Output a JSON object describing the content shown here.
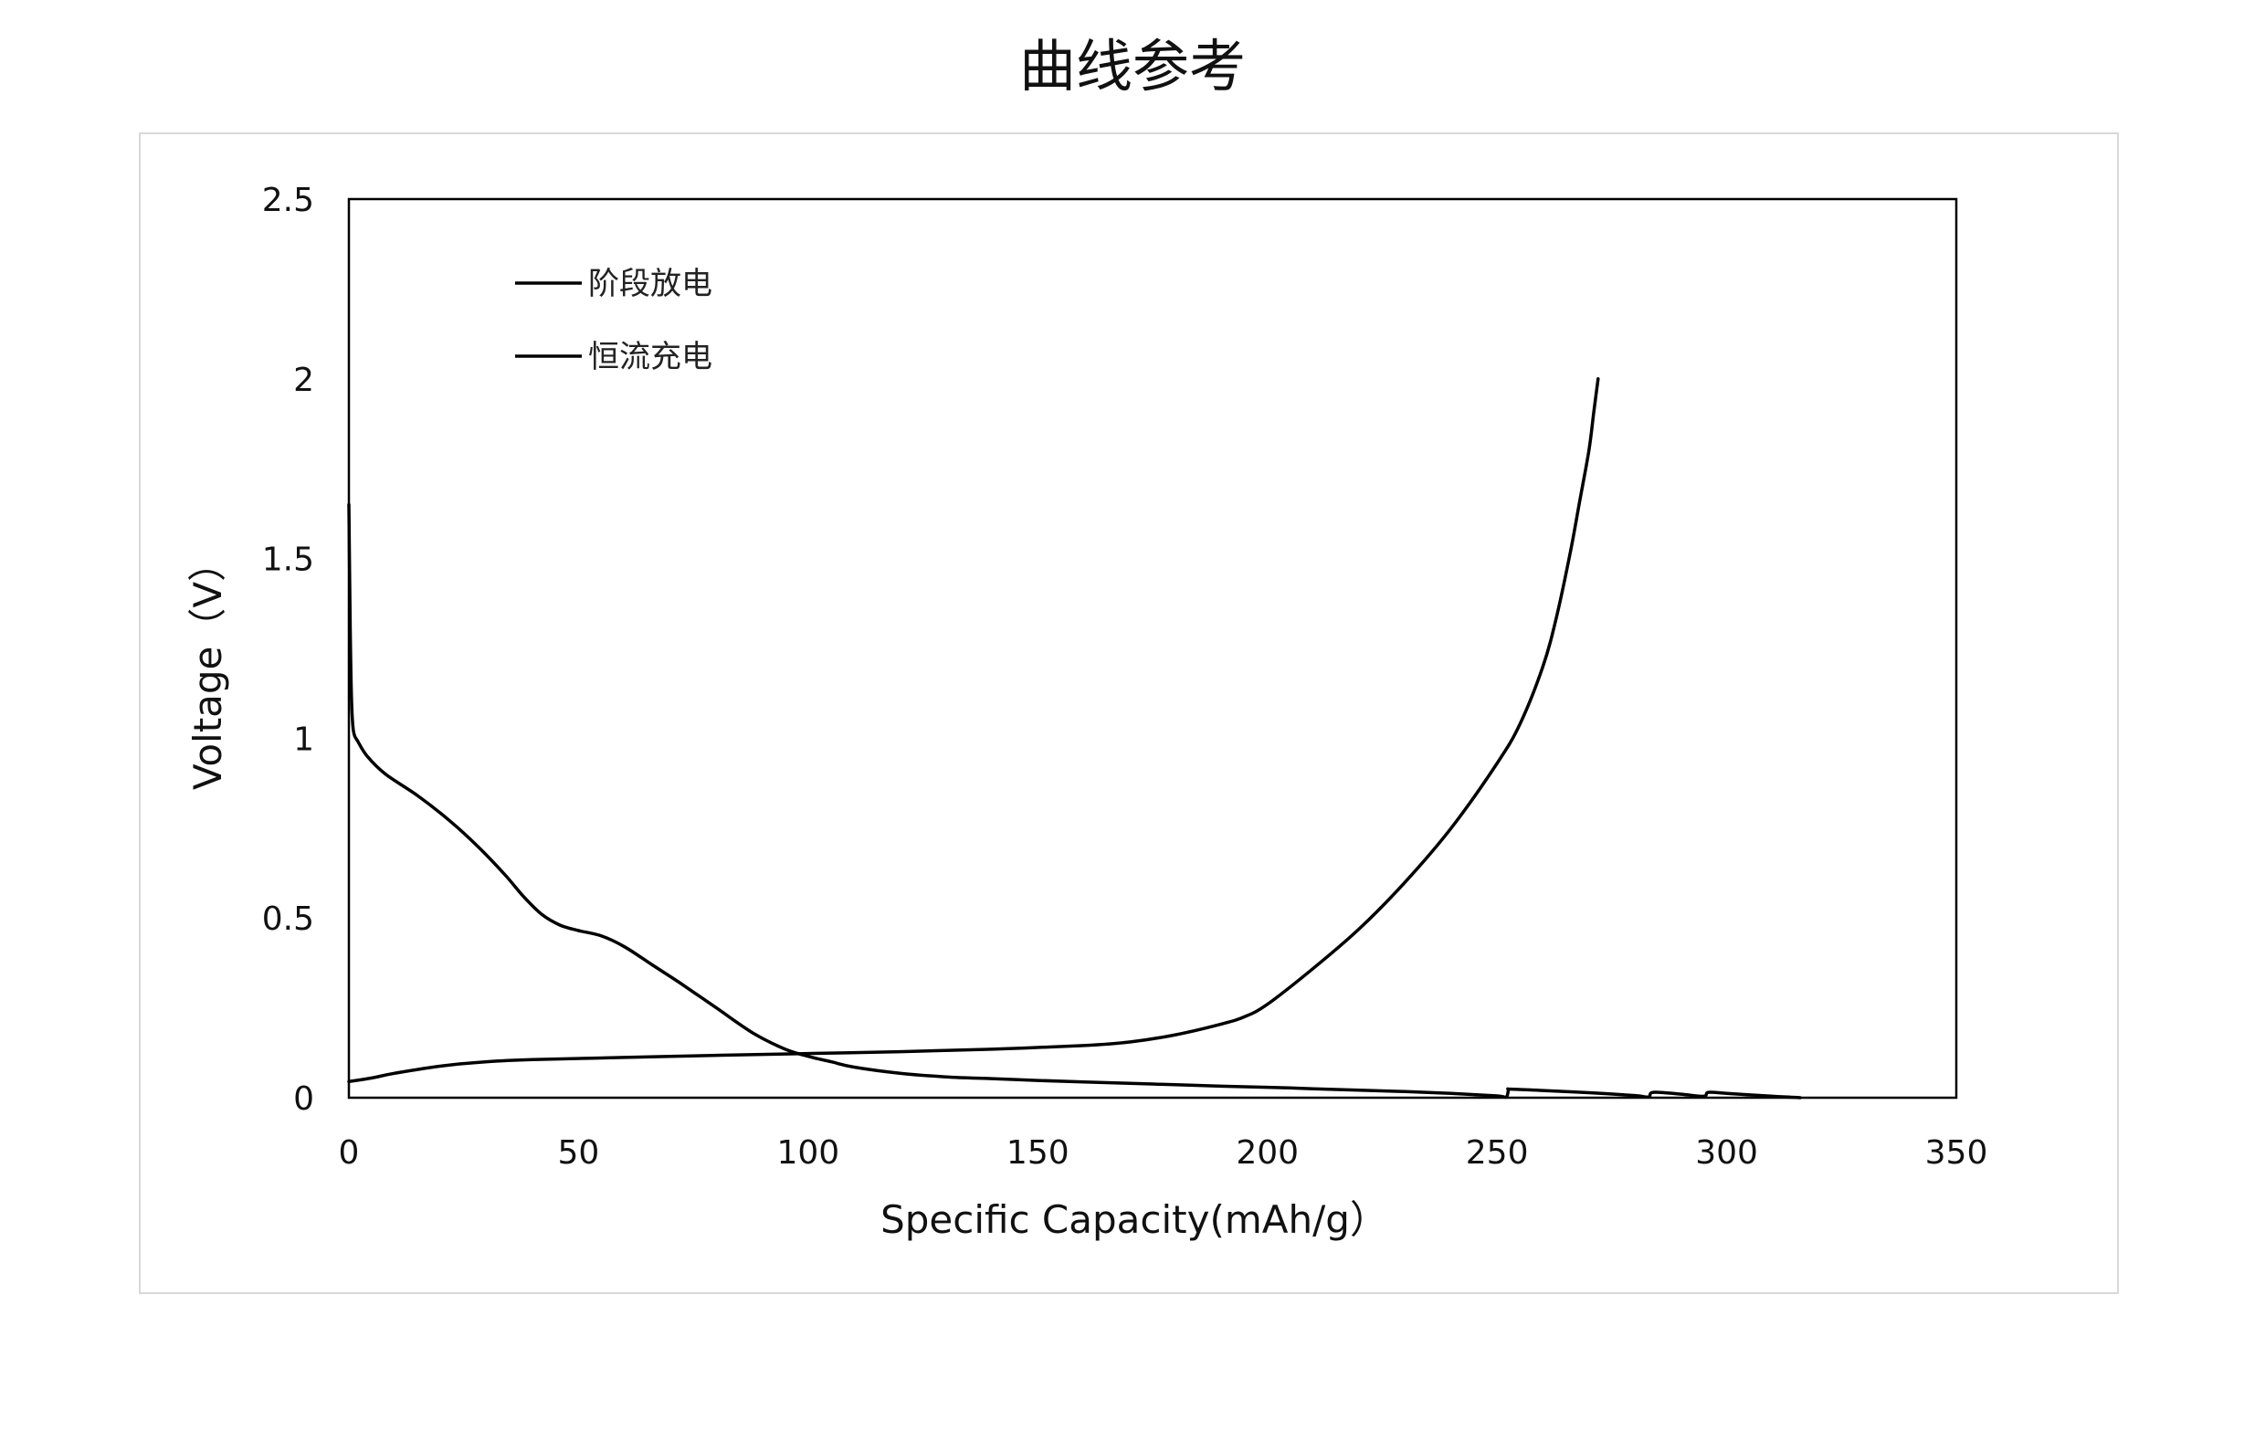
{
  "page": {
    "title": "曲线参考"
  },
  "chart_data": {
    "type": "line",
    "title": "",
    "xlabel": "Specific Capacity(mAh/g）",
    "ylabel": "Voltage（V）",
    "xlim": [
      0,
      350
    ],
    "ylim": [
      0,
      2.5
    ],
    "xticks": [
      0,
      50,
      100,
      150,
      200,
      250,
      300,
      350
    ],
    "yticks": [
      0,
      0.5,
      1,
      1.5,
      2,
      2.5
    ],
    "xtick_labels": [
      "0",
      "50",
      "100",
      "150",
      "200",
      "250",
      "300",
      "350"
    ],
    "ytick_labels": [
      "0",
      "0.5",
      "1",
      "1.5",
      "2",
      "2.5"
    ],
    "grid": false,
    "legend_position": "top-left",
    "line_color": "#000000",
    "series": [
      {
        "name": "阶段放电",
        "x": [
          0,
          0.3,
          0.6,
          1,
          2,
          4,
          8,
          15,
          22,
          28,
          34,
          38,
          42,
          46,
          50,
          55,
          60,
          66,
          72,
          80,
          88,
          95,
          100,
          105,
          110,
          120,
          130,
          140,
          150,
          160,
          170,
          180,
          190,
          200,
          210,
          220,
          230,
          240,
          250,
          252,
          252.5,
          253,
          260,
          270,
          280,
          283,
          284,
          290,
          295,
          296,
          300,
          305,
          310,
          316
        ],
        "y": [
          1.65,
          1.3,
          1.1,
          1.02,
          0.99,
          0.95,
          0.9,
          0.84,
          0.77,
          0.7,
          0.62,
          0.56,
          0.51,
          0.48,
          0.465,
          0.45,
          0.42,
          0.37,
          0.32,
          0.25,
          0.18,
          0.135,
          0.115,
          0.1,
          0.085,
          0.068,
          0.058,
          0.053,
          0.048,
          0.044,
          0.04,
          0.036,
          0.032,
          0.029,
          0.025,
          0.021,
          0.017,
          0.012,
          0.005,
          0.002,
          0.022,
          0.024,
          0.02,
          0.014,
          0.006,
          0.002,
          0.015,
          0.01,
          0.004,
          0.015,
          0.012,
          0.008,
          0.004,
          0.0
        ]
      },
      {
        "name": "恒流充电",
        "x": [
          0,
          5,
          10,
          20,
          30,
          40,
          60,
          80,
          100,
          120,
          140,
          160,
          170,
          180,
          190,
          195,
          200,
          210,
          220,
          230,
          240,
          250,
          255,
          260,
          263,
          266,
          268,
          270,
          271,
          272
        ],
        "y": [
          0.045,
          0.055,
          0.068,
          0.088,
          0.1,
          0.106,
          0.112,
          0.118,
          0.123,
          0.128,
          0.135,
          0.145,
          0.155,
          0.175,
          0.205,
          0.225,
          0.26,
          0.36,
          0.47,
          0.6,
          0.75,
          0.93,
          1.04,
          1.2,
          1.34,
          1.52,
          1.66,
          1.8,
          1.9,
          2.0
        ]
      }
    ]
  }
}
